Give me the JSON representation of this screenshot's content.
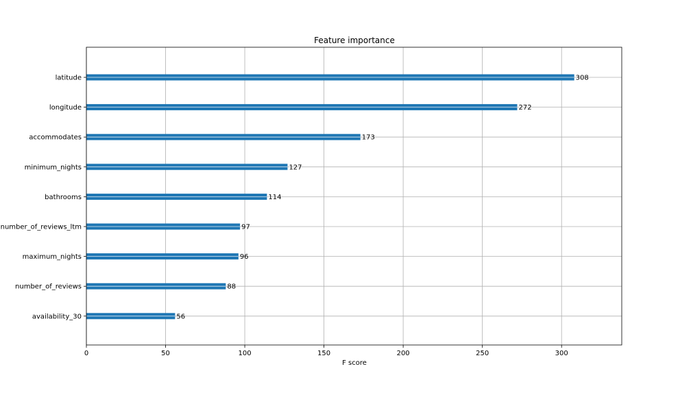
{
  "chart_data": {
    "type": "bar",
    "orientation": "horizontal",
    "title": "Feature importance",
    "xlabel": "F score",
    "ylabel": "",
    "xlim": [
      0,
      338
    ],
    "xticks": [
      0,
      50,
      100,
      150,
      200,
      250,
      300
    ],
    "categories": [
      "latitude",
      "longitude",
      "accommodates",
      "minimum_nights",
      "bathrooms",
      "number_of_reviews_ltm",
      "maximum_nights",
      "number_of_reviews",
      "availability_30"
    ],
    "values": [
      308,
      272,
      173,
      127,
      114,
      97,
      96,
      88,
      56
    ],
    "bar_color": "#1f77b4",
    "grid": true,
    "legend": "none"
  }
}
